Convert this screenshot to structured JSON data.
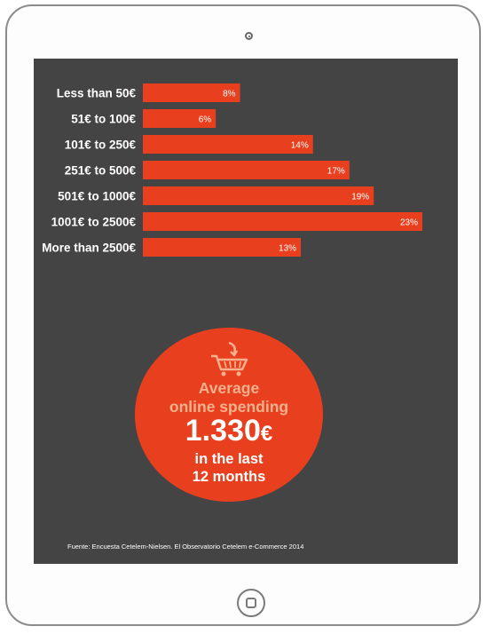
{
  "chart_data": {
    "type": "bar",
    "orientation": "horizontal",
    "categories": [
      "Less than 50€",
      "51€ to 100€",
      "101€ to 250€",
      "251€ to 500€",
      "501€ to 1000€",
      "1001€ to 2500€",
      "More than 2500€"
    ],
    "values": [
      8,
      6,
      14,
      17,
      19,
      23,
      13
    ],
    "value_labels": [
      "8%",
      "6%",
      "14%",
      "17%",
      "19%",
      "23%",
      "13%"
    ],
    "unit": "%",
    "bar_color": "#e8401f",
    "grid": false,
    "legend": "none"
  },
  "callout": {
    "icon": "shopping-cart-icon",
    "line1": "Average",
    "line2": "online spending",
    "amount": "1.330",
    "currency": "€",
    "line4": "in the last",
    "line5": "12 months",
    "circle_color": "#e8401f",
    "accent_color": "#f7b08c"
  },
  "source": "Fuente: Encuesta Cetelem-Nielsen. El Observatorio Cetelem e-Commerce 2014",
  "colors": {
    "screen_background": "#444444",
    "tablet_frame": "#8c8c8c"
  }
}
